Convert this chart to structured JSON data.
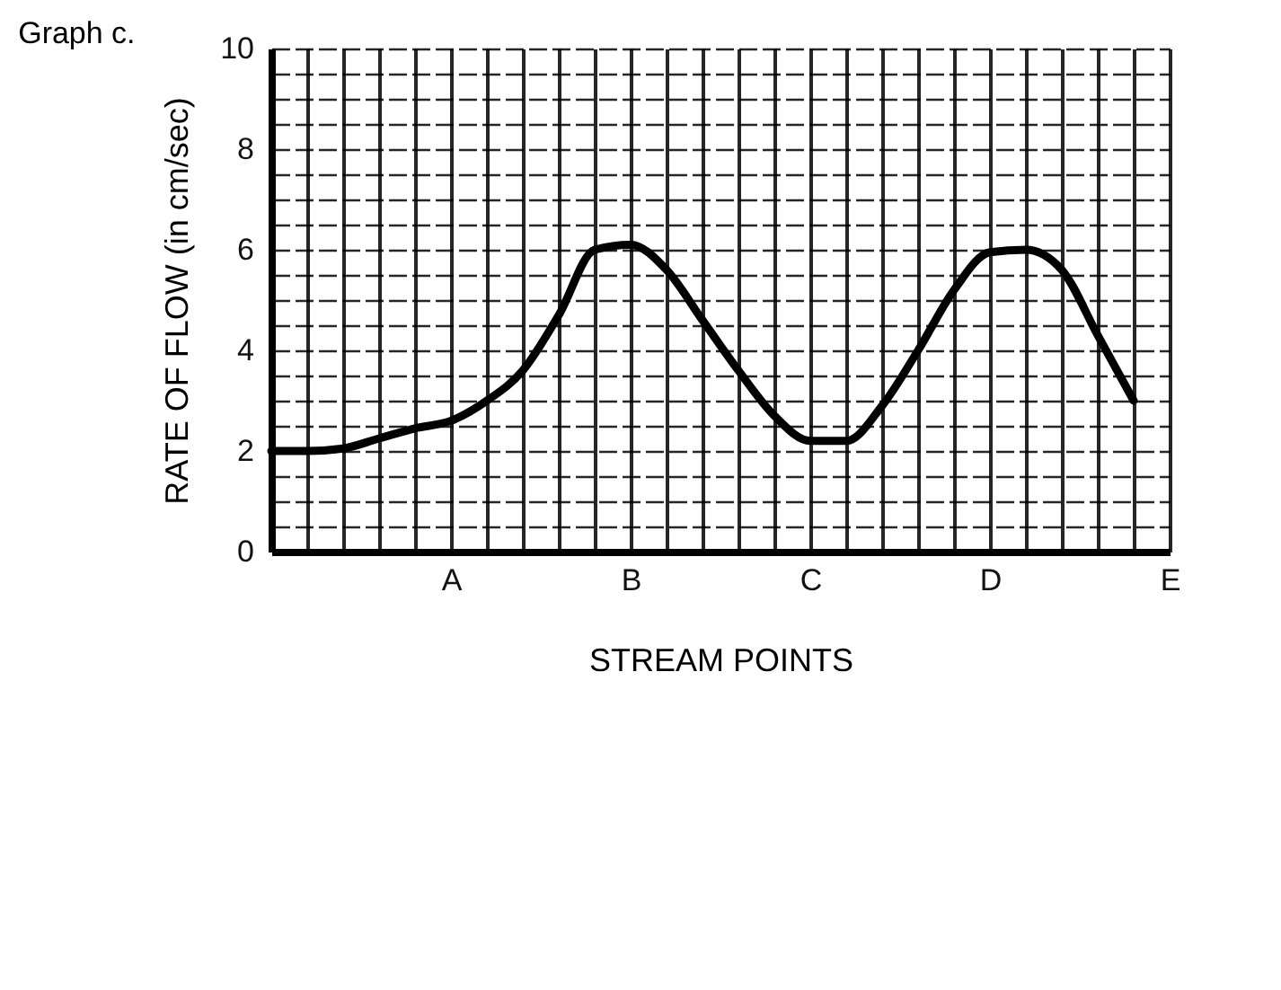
{
  "chart_data": {
    "type": "line",
    "title": "Graph c.",
    "xlabel": "STREAM POINTS",
    "ylabel": "RATE OF FLOW (in cm/sec)",
    "categories": [
      null,
      null,
      null,
      null,
      null,
      "A",
      null,
      null,
      null,
      null,
      "B",
      null,
      null,
      null,
      null,
      "C",
      null,
      null,
      null,
      null,
      "D",
      null,
      null,
      null,
      null,
      "E"
    ],
    "series": [
      {
        "color": "#000000",
        "values": [
          2.0,
          2.0,
          2.05,
          2.25,
          2.45,
          2.6,
          3.0,
          3.6,
          4.7,
          6.0,
          6.1,
          5.6,
          4.6,
          3.6,
          2.7,
          2.2,
          2.2,
          2.9,
          4.0,
          5.2,
          5.95,
          6.0,
          5.6,
          4.3,
          3.0,
          null
        ]
      }
    ],
    "ylim": [
      0,
      10
    ],
    "yticks": [
      0,
      {
        "value": 0.5,
        "label": null
      },
      {
        "value": 1,
        "label": null
      },
      {
        "value": 1.5,
        "label": null
      },
      2,
      {
        "value": 2.5,
        "label": null
      },
      {
        "value": 3,
        "label": null
      },
      {
        "value": 3.5,
        "label": null
      },
      4,
      {
        "value": 4.5,
        "label": null
      },
      {
        "value": 5,
        "label": null
      },
      {
        "value": 5.5,
        "label": null
      },
      6,
      {
        "value": 6.5,
        "label": null
      },
      {
        "value": 7,
        "label": null
      },
      {
        "value": 7.5,
        "label": null
      },
      8,
      {
        "value": 8.5,
        "label": null
      },
      {
        "value": 9,
        "label": null
      },
      {
        "value": 9.5,
        "label": null
      },
      10
    ],
    "grid": true,
    "marker": "none",
    "line_style": "solid"
  }
}
